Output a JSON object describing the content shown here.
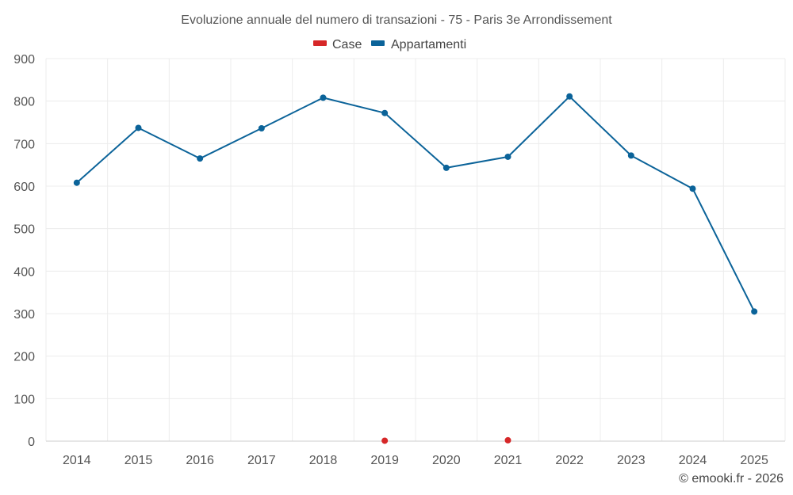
{
  "chart_data": {
    "type": "line",
    "title": "Evoluzione annuale del numero di transazioni - 75 - Paris 3e Arrondissement",
    "categories": [
      "2014",
      "2015",
      "2016",
      "2017",
      "2018",
      "2019",
      "2020",
      "2021",
      "2022",
      "2023",
      "2024",
      "2025"
    ],
    "ylim": [
      0,
      900
    ],
    "yticks": [
      0,
      100,
      200,
      300,
      400,
      500,
      600,
      700,
      800,
      900
    ],
    "grid": true,
    "legend_position": "top-center",
    "series": [
      {
        "name": "Case",
        "color": "#d62728",
        "points": [
          {
            "category": "2019",
            "value": 1
          },
          {
            "category": "2021",
            "value": 2
          }
        ]
      },
      {
        "name": "Appartamenti",
        "color": "#0b6399",
        "values": [
          608,
          737,
          665,
          736,
          808,
          772,
          643,
          669,
          811,
          672,
          594,
          305
        ]
      }
    ]
  },
  "credit": "© emooki.fr - 2026"
}
